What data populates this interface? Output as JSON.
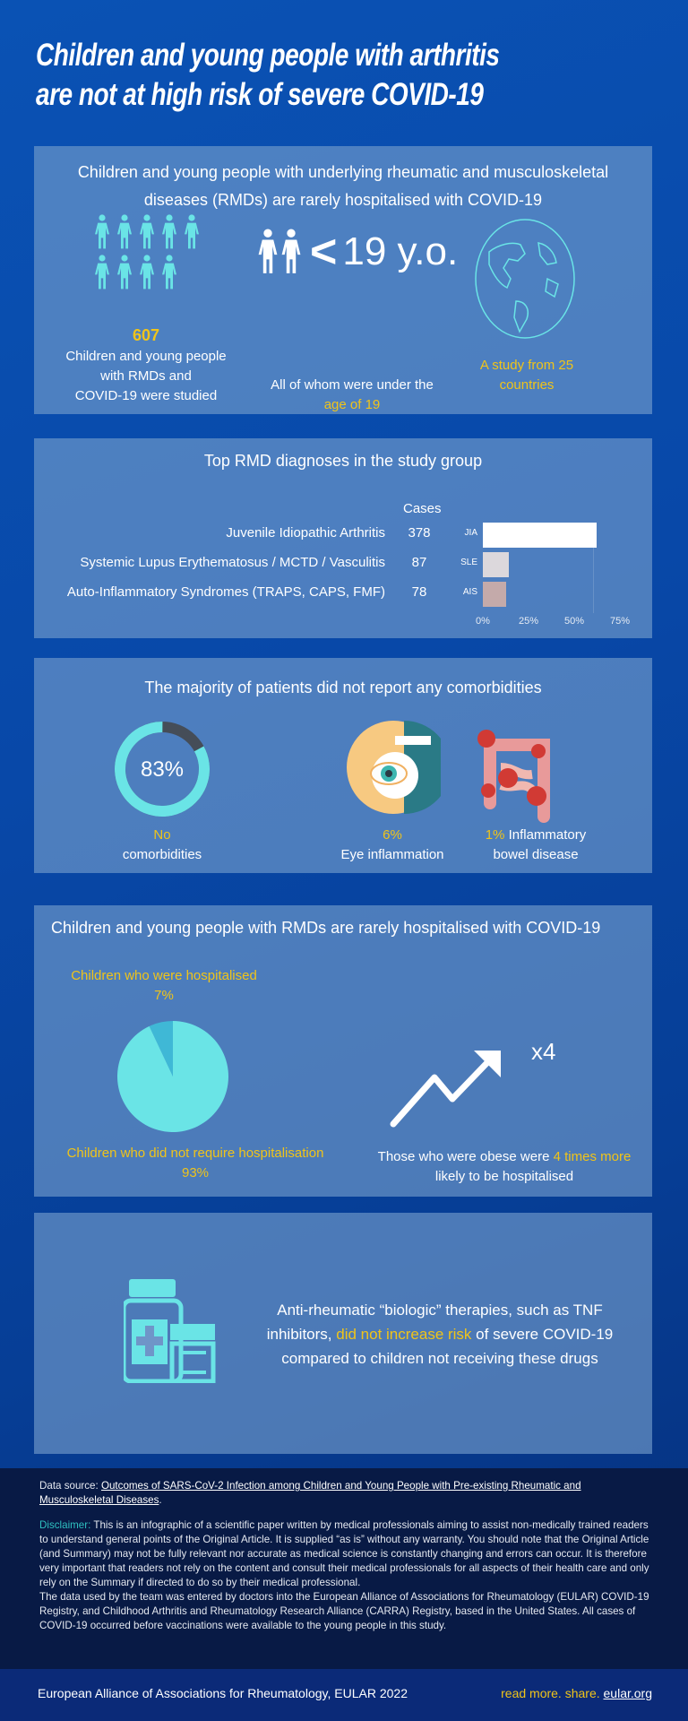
{
  "title": {
    "line1": "Children and young people with arthritis",
    "line2": "are not at high risk of severe COVID-19"
  },
  "section1": {
    "heading": "Children and young people with underlying rheumatic and musculoskeletal diseases (RMDs) are rarely hospitalised with COVID-19",
    "count": "607",
    "count_label_1": "Children and young people",
    "count_label_2": "with RMDs and",
    "count_label_3": "COVID-19 were studied",
    "age_symbol": "<",
    "age_value": "19 y.o.",
    "age_label": "All of whom were under the",
    "age_label_highlight": "age of 19",
    "countries_1": "A study from 25",
    "countries_2": "countries"
  },
  "section2": {
    "heading": "Top RMD diagnoses in the study group",
    "cases_header": "Cases",
    "chart_data": {
      "type": "bar",
      "orientation": "horizontal",
      "categories": [
        "JIA",
        "SLE",
        "AIS"
      ],
      "values_percent": [
        62.3,
        14.3,
        12.9
      ],
      "xlim": [
        0,
        75
      ],
      "xticks": [
        "0%",
        "25%",
        "50%",
        "75%"
      ],
      "bar_colors": [
        "#ffffff",
        "#dcd8dc",
        "#c4aaaa"
      ]
    },
    "rows": [
      {
        "name": "Juvenile Idiopathic Arthritis",
        "cases": "378",
        "abbr": "JIA"
      },
      {
        "name": "Systemic Lupus Erythematosus / MCTD / Vasculitis",
        "cases": "87",
        "abbr": "SLE"
      },
      {
        "name": "Auto-Inflammatory Syndromes (TRAPS, CAPS, FMF)",
        "cases": "78",
        "abbr": "AIS"
      }
    ]
  },
  "section3": {
    "heading": "The majority of patients did not report any comorbidities",
    "donut_value": "83%",
    "donut_fraction": 0.83,
    "no_label_highlight": "No",
    "no_label": "comorbidities",
    "eye_pct": "6%",
    "eye_label": "Eye inflammation",
    "ibd_pct": "1%",
    "ibd_label_1": "Inflammatory",
    "ibd_label_2": "bowel disease"
  },
  "section4": {
    "heading": "Children and young people with RMDs are rarely hospitalised with COVID-19",
    "chart_data": {
      "type": "pie",
      "categories": [
        "Children who were hospitalised",
        "Children who did not require hospitalisation"
      ],
      "values": [
        7,
        93
      ],
      "colors": [
        "#3fb8d6",
        "#6ae4e6"
      ]
    },
    "hosp_label": "Children who were hospitalised",
    "hosp_value": "7%",
    "nonhosp_label": "Children who did not require hospitalisation",
    "nonhosp_value": "93%",
    "multiplier": "x4",
    "obese_1": "Those who were obese were",
    "obese_hl1": "4 times",
    "obese_hl2": "more",
    "obese_2": "likely to be hospitalised"
  },
  "section5": {
    "text_1": "Anti-rheumatic “biologic” therapies, such as TNF",
    "text_2a": "inhibitors,",
    "text_hl": "did not increase risk",
    "text_2b": "of severe COVID-19",
    "text_3": "compared to children not receiving these drugs"
  },
  "footer": {
    "source_label": "Data source:",
    "source_link": "Outcomes of SARS-CoV-2 Infection among Children and Young People with Pre-existing Rheumatic and Musculoskeletal Diseases",
    "disclaimer_label": "Disclaimer:",
    "disclaimer": "This is an infographic of a scientific paper written by medical professionals aiming to assist non-medically trained readers to understand general points of the Original Article. It is supplied “as is” without any warranty. You should note that the Original Article (and Summary) may not be fully relevant nor accurate as medical science is constantly changing and errors can occur. It is therefore very important that readers not rely on the content and consult their medical professionals for all aspects of their health care and only rely on the Summary if directed to do so by their medical professional.",
    "data_note": "The data used by the team was entered by doctors into the European Alliance of Associations for Rheumatology (EULAR) COVID-19 Registry, and Childhood Arthritis and Rheumatology Research Alliance (CARRA) Registry, based in the United States. All cases of COVID-19 occurred before vaccinations were available to the young people in this study.",
    "org": "European Alliance of Associations for Rheumatology, EULAR 2022",
    "tagline": "read more. share.",
    "link": "eular.org"
  },
  "colors": {
    "accent": "#f0c419",
    "teal": "#6ae4e6",
    "panel": "#6f95c8",
    "background": "#0848a8",
    "footer": "#081a45"
  }
}
